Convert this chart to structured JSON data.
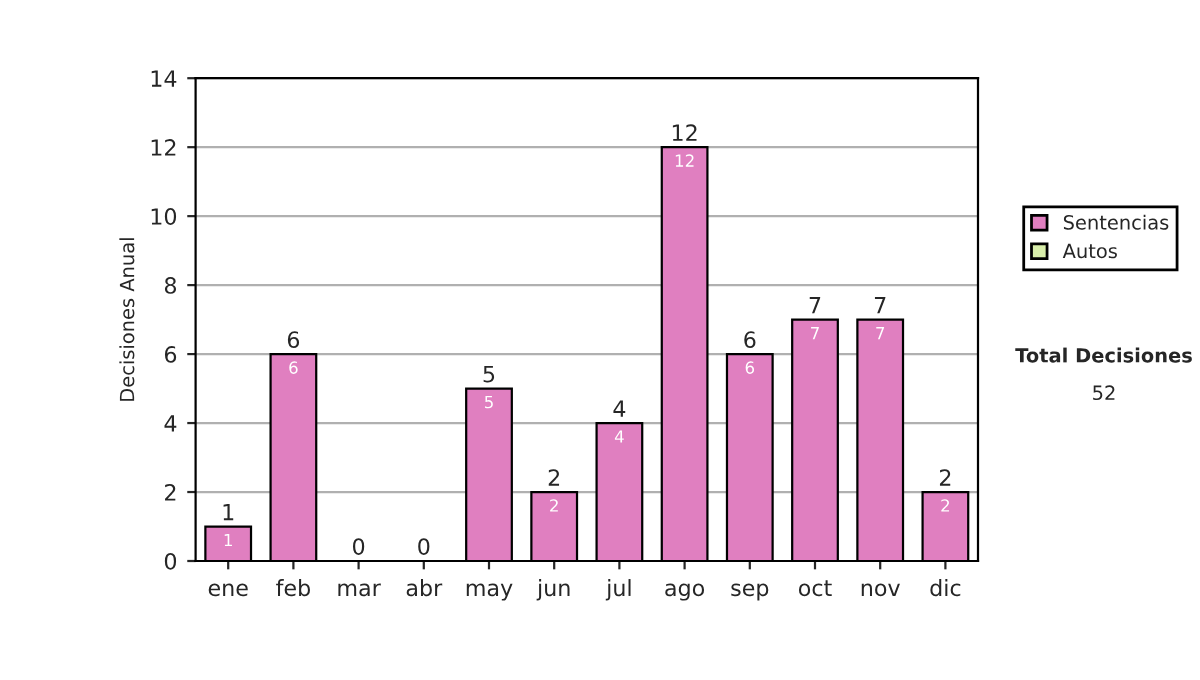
{
  "chart_data": {
    "type": "bar",
    "ylabel": "Decisiones Anual",
    "categories": [
      "ene",
      "feb",
      "mar",
      "abr",
      "may",
      "jun",
      "jul",
      "ago",
      "sep",
      "oct",
      "nov",
      "dic"
    ],
    "stacked": true,
    "series": [
      {
        "name": "Sentencias",
        "color": "#e07fc0",
        "values": [
          1,
          6,
          0,
          0,
          5,
          2,
          4,
          12,
          6,
          7,
          7,
          2
        ],
        "value_labels": [
          "1",
          "6",
          null,
          null,
          "5",
          "2",
          "4",
          "12",
          "6",
          "7",
          "7",
          "2"
        ]
      },
      {
        "name": "Autos",
        "color": "#d8eeaa",
        "values": [
          0,
          0,
          0,
          0,
          0,
          0,
          0,
          0,
          0,
          0,
          0,
          0
        ]
      }
    ],
    "totals": [
      "1",
      "6",
      "0",
      "0",
      "5",
      "2",
      "4",
      "12",
      "6",
      "7",
      "7",
      "2"
    ],
    "ylim": [
      0,
      14
    ],
    "yticks": [
      0,
      2,
      4,
      6,
      8,
      10,
      12,
      14
    ],
    "grid": "y",
    "legend": "right",
    "annotations": [
      "Total Decisiones",
      "52"
    ]
  }
}
